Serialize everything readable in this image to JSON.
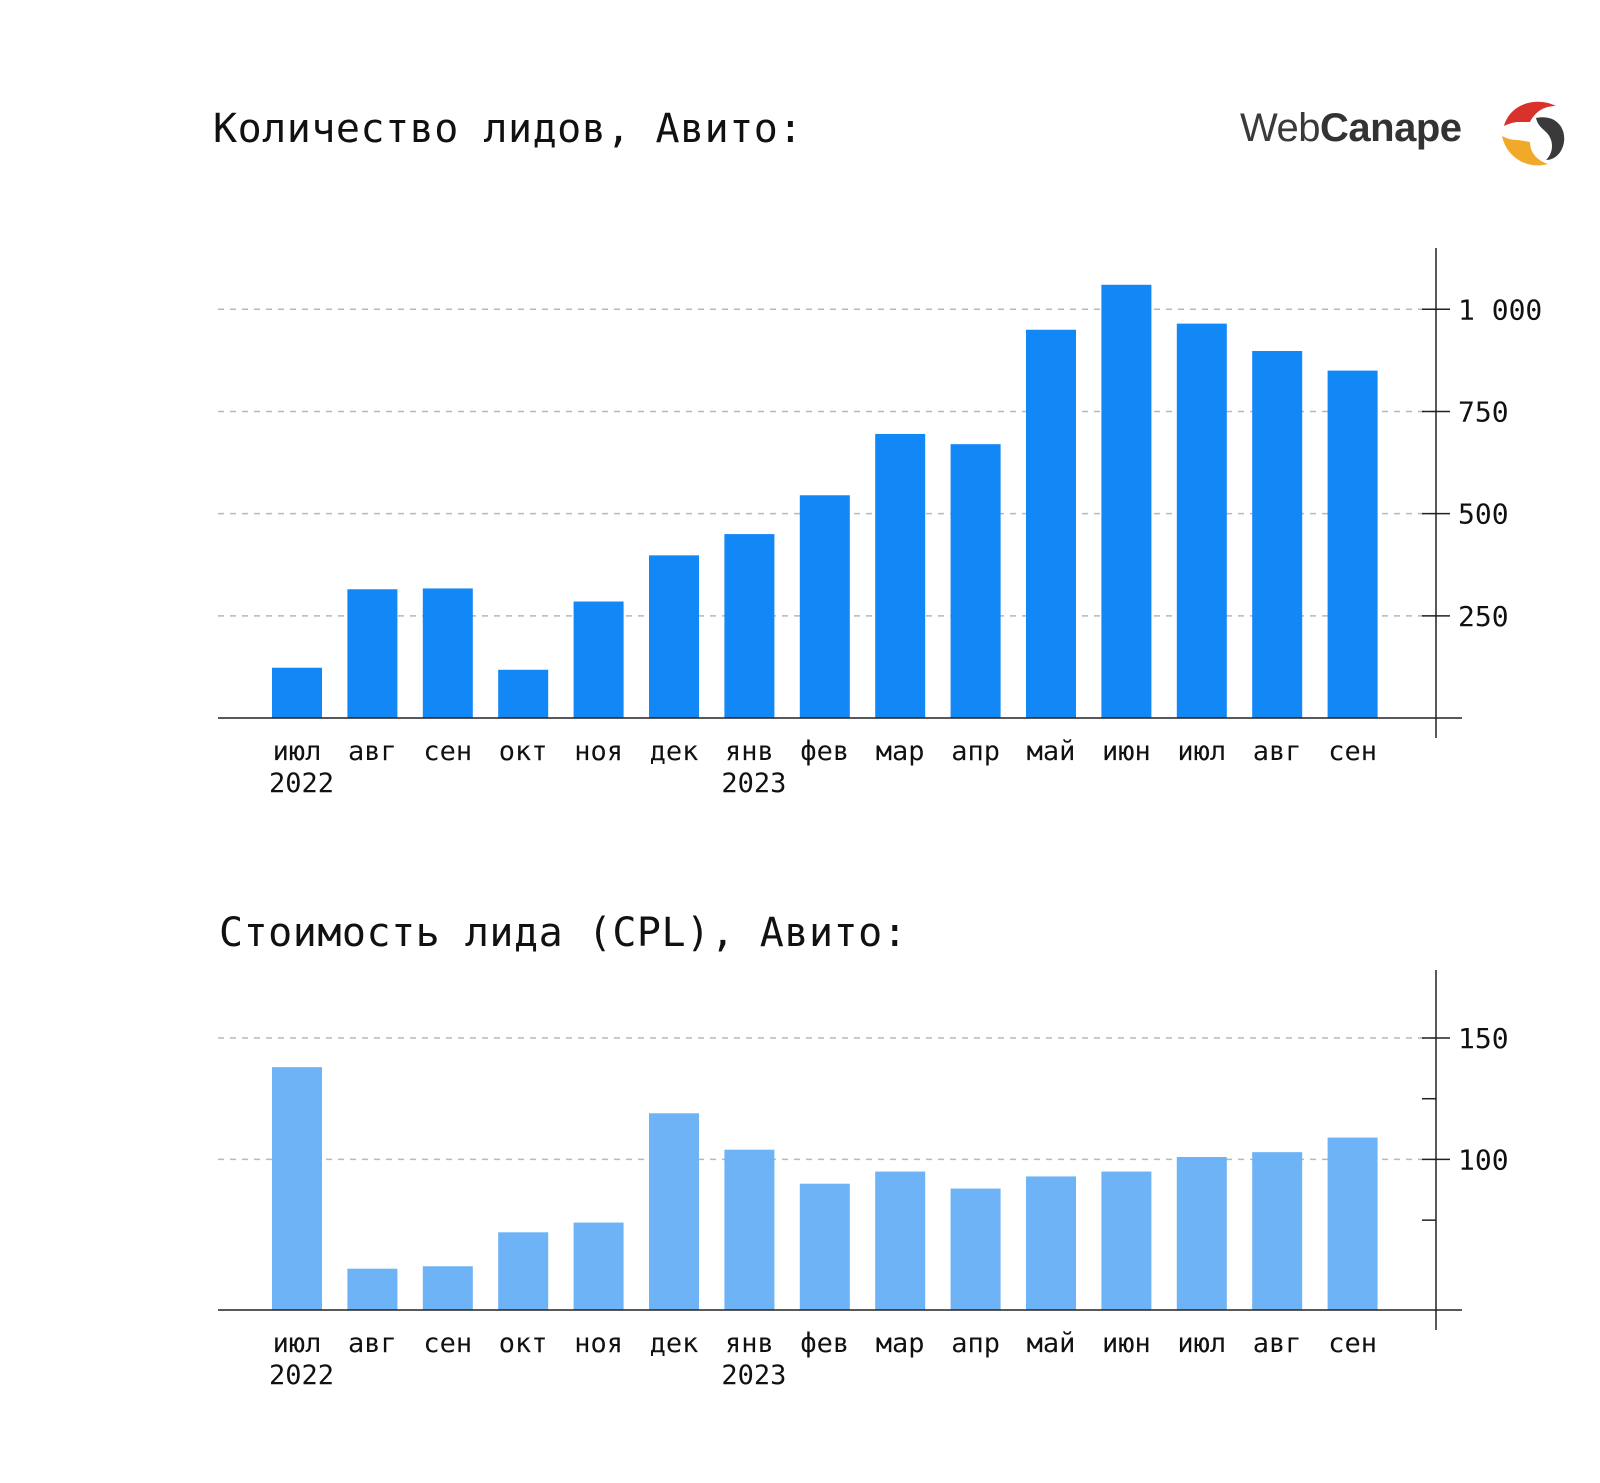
{
  "logo": {
    "part1": "Web",
    "part2": "Canape",
    "colors": [
      "#d9312b",
      "#f0a928",
      "#3a3a3a"
    ]
  },
  "chart_data": [
    {
      "type": "bar",
      "title": "Количество лидов, Авито:",
      "categories": [
        "июл",
        "авг",
        "сен",
        "окт",
        "ноя",
        "дек",
        "янв",
        "фев",
        "мар",
        "апр",
        "май",
        "июн",
        "июл",
        "авг",
        "сен"
      ],
      "year_labels": [
        "2022",
        "",
        "",
        "",
        "",
        "",
        "2023",
        "",
        "",
        "",
        "",
        "",
        "",
        "",
        ""
      ],
      "values": [
        123,
        315,
        317,
        118,
        285,
        398,
        450,
        545,
        695,
        670,
        950,
        1060,
        965,
        898,
        850
      ],
      "ylim": [
        0,
        1150
      ],
      "yticks": [
        250,
        500,
        750,
        1000
      ],
      "ytick_labels": [
        "250",
        "500",
        "750",
        "1 000"
      ],
      "minor_yticks": [],
      "yaxis_position": "right",
      "grid": "dashed",
      "color": "#1287f6"
    },
    {
      "type": "bar",
      "title": "Стоимость лида (CPL), Авито:",
      "categories": [
        "июл",
        "авг",
        "сен",
        "окт",
        "ноя",
        "дек",
        "янв",
        "фев",
        "мар",
        "апр",
        "май",
        "июн",
        "июл",
        "авг",
        "сен"
      ],
      "year_labels": [
        "2022",
        "",
        "",
        "",
        "",
        "",
        "2023",
        "",
        "",
        "",
        "",
        "",
        "",
        "",
        ""
      ],
      "values": [
        138,
        55,
        56,
        70,
        74,
        119,
        104,
        90,
        95,
        88,
        93,
        95,
        101,
        103,
        109
      ],
      "ylim": [
        38,
        178
      ],
      "yticks": [
        100,
        150
      ],
      "ytick_labels": [
        "100",
        "150"
      ],
      "minor_yticks": [
        75,
        125
      ],
      "yaxis_position": "right",
      "grid": "dashed",
      "color": "#6db3f6"
    }
  ]
}
